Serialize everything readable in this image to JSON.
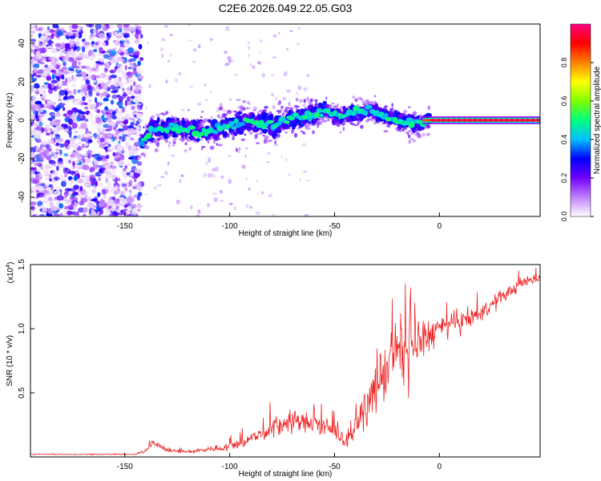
{
  "title": "C2E6.2026.049.22.05.G03",
  "chart_data": [
    {
      "type": "heatmap",
      "name": "spectrogram",
      "xlabel": "Height of straight line (km)",
      "ylabel": "Frequency (Hz)",
      "xlim": [
        -195,
        48
      ],
      "ylim": [
        -50,
        50
      ],
      "xticks": [
        -150,
        -100,
        -50,
        0
      ],
      "yticks": [
        -40,
        -20,
        0,
        20,
        40
      ],
      "colorbar": {
        "label": "Normalized spectral amplitude",
        "range": [
          0,
          1
        ],
        "ticks": [
          "0.0",
          "0.2",
          "0.4",
          "0.6",
          "0.8"
        ],
        "stops": [
          "#ffffff",
          "#c080ff",
          "#7000ff",
          "#0000ff",
          "#00c0ff",
          "#00ff80",
          "#80ff00",
          "#ffff00",
          "#ff8000",
          "#ff0000",
          "#ff0080"
        ]
      },
      "noise_region_x": [
        -195,
        -142
      ],
      "trace": {
        "x": [
          -142,
          -138,
          -130,
          -120,
          -110,
          -100,
          -90,
          -80,
          -70,
          -60,
          -55,
          -50,
          -45,
          -40,
          -35,
          -30,
          -25,
          -20,
          -15,
          -10,
          -5,
          0,
          10,
          20,
          30,
          40,
          48
        ],
        "y": [
          -12,
          -5,
          -4,
          -5,
          -6,
          -2,
          -1,
          -3,
          1,
          3,
          5,
          3,
          2,
          4,
          5,
          4,
          2,
          0,
          -1,
          -2,
          0,
          0,
          0,
          0,
          0,
          0,
          0
        ]
      }
    },
    {
      "type": "line",
      "name": "snr",
      "xlabel": "Height of straight line (km)",
      "ylabel": "SNR (10 * v/v)",
      "scale_label": "(x10",
      "scale_exp": "4",
      "scale_close": ")",
      "xlim": [
        -195,
        48
      ],
      "ylim": [
        0,
        1.5
      ],
      "xticks": [
        -150,
        -100,
        -50,
        0
      ],
      "yticks": [
        "0.5",
        "1.0",
        "1.5"
      ],
      "color": "#ee2222",
      "envelope": {
        "x": [
          -195,
          -145,
          -140,
          -137,
          -130,
          -120,
          -110,
          -100,
          -90,
          -80,
          -70,
          -60,
          -50,
          -45,
          -40,
          -35,
          -30,
          -25,
          -20,
          -15,
          -10,
          -5,
          0,
          10,
          20,
          30,
          40,
          48
        ],
        "mean": [
          0.02,
          0.02,
          0.05,
          0.12,
          0.05,
          0.04,
          0.06,
          0.08,
          0.14,
          0.22,
          0.28,
          0.26,
          0.2,
          0.12,
          0.22,
          0.38,
          0.55,
          0.7,
          0.85,
          0.78,
          0.9,
          0.95,
          1.0,
          1.05,
          1.12,
          1.25,
          1.36,
          1.4
        ],
        "spread": [
          0.005,
          0.005,
          0.02,
          0.04,
          0.02,
          0.02,
          0.03,
          0.05,
          0.08,
          0.12,
          0.13,
          0.12,
          0.1,
          0.06,
          0.12,
          0.2,
          0.3,
          0.35,
          0.4,
          0.35,
          0.3,
          0.2,
          0.15,
          0.12,
          0.1,
          0.08,
          0.06,
          0.05
        ]
      }
    }
  ]
}
